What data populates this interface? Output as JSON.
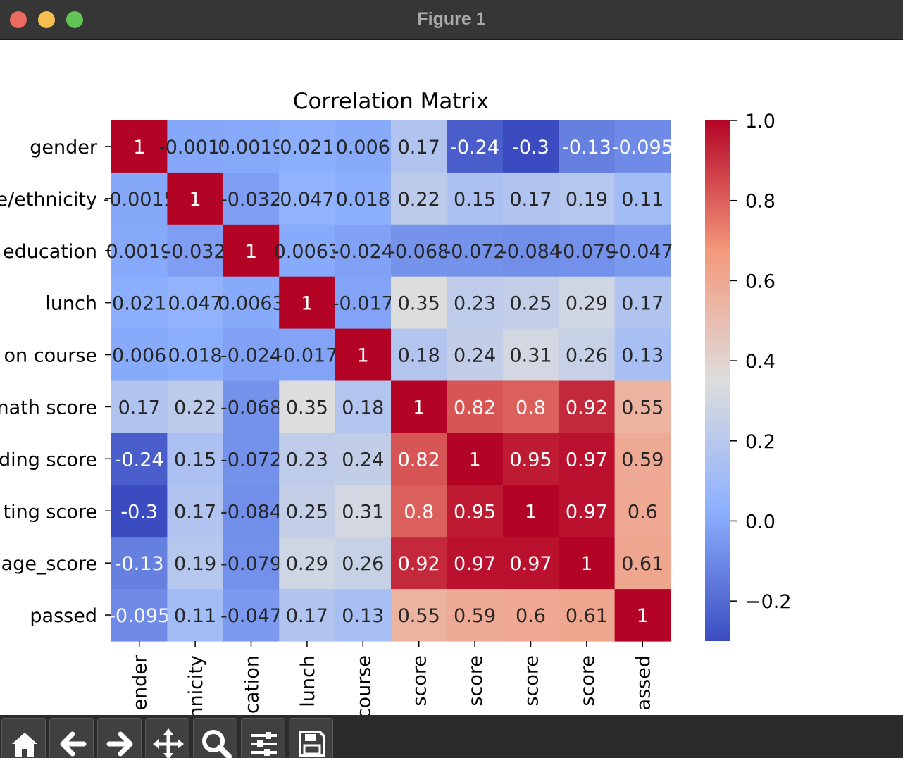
{
  "window": {
    "title": "Figure 1"
  },
  "toolbar": {
    "buttons": [
      {
        "name": "home-icon"
      },
      {
        "name": "back-arrow-icon"
      },
      {
        "name": "forward-arrow-icon"
      },
      {
        "name": "pan-move-icon"
      },
      {
        "name": "zoom-magnifier-icon"
      },
      {
        "name": "configure-subplots-icon"
      },
      {
        "name": "save-floppy-icon"
      }
    ]
  },
  "chart_data": {
    "type": "heatmap",
    "title": "Correlation Matrix",
    "colormap": "coolwarm",
    "vmin": -0.3,
    "vmax": 1.0,
    "y_tick_labels": [
      "gender",
      "e/ethnicity",
      "education",
      "lunch",
      "on course",
      "nath score",
      "ding score",
      "ting score",
      "age_score",
      "passed"
    ],
    "x_tick_labels": [
      "ender",
      "nnicity",
      "cation",
      "lunch",
      "course",
      "score",
      "score",
      "score",
      "score",
      "assed"
    ],
    "cell_labels": [
      [
        "1",
        "-0.0015",
        "0.0019",
        "0.021",
        "0.006",
        "0.17",
        "-0.24",
        "-0.3",
        "-0.13",
        "-0.095"
      ],
      [
        "-0.0015",
        "1",
        "-0.032",
        "0.047",
        "0.018",
        "0.22",
        "0.15",
        "0.17",
        "0.19",
        "0.11"
      ],
      [
        "0.0019",
        "-0.032",
        "1",
        "0.0063",
        "-0.024",
        "-0.068",
        "-0.072",
        "-0.084",
        "-0.079",
        "-0.047"
      ],
      [
        "0.021",
        "0.047",
        "0.0063",
        "1",
        "-0.017",
        "0.35",
        "0.23",
        "0.25",
        "0.29",
        "0.17"
      ],
      [
        "0.006",
        "0.018",
        "-0.024",
        "-0.017",
        "1",
        "0.18",
        "0.24",
        "0.31",
        "0.26",
        "0.13"
      ],
      [
        "0.17",
        "0.22",
        "-0.068",
        "0.35",
        "0.18",
        "1",
        "0.82",
        "0.8",
        "0.92",
        "0.55"
      ],
      [
        "-0.24",
        "0.15",
        "-0.072",
        "0.23",
        "0.24",
        "0.82",
        "1",
        "0.95",
        "0.97",
        "0.59"
      ],
      [
        "-0.3",
        "0.17",
        "-0.084",
        "0.25",
        "0.31",
        "0.8",
        "0.95",
        "1",
        "0.97",
        "0.6"
      ],
      [
        "-0.13",
        "0.19",
        "-0.079",
        "0.29",
        "0.26",
        "0.92",
        "0.97",
        "0.97",
        "1",
        "0.61"
      ],
      [
        "-0.095",
        "0.11",
        "-0.047",
        "0.17",
        "0.13",
        "0.55",
        "0.59",
        "0.6",
        "0.61",
        "1"
      ]
    ],
    "colorbar": {
      "ticks": [
        1.0,
        0.8,
        0.6,
        0.4,
        0.2,
        0.0,
        -0.2
      ],
      "tick_labels": [
        "1.0",
        "0.8",
        "0.6",
        "0.4",
        "0.2",
        "0.0",
        "−0.2"
      ]
    }
  }
}
